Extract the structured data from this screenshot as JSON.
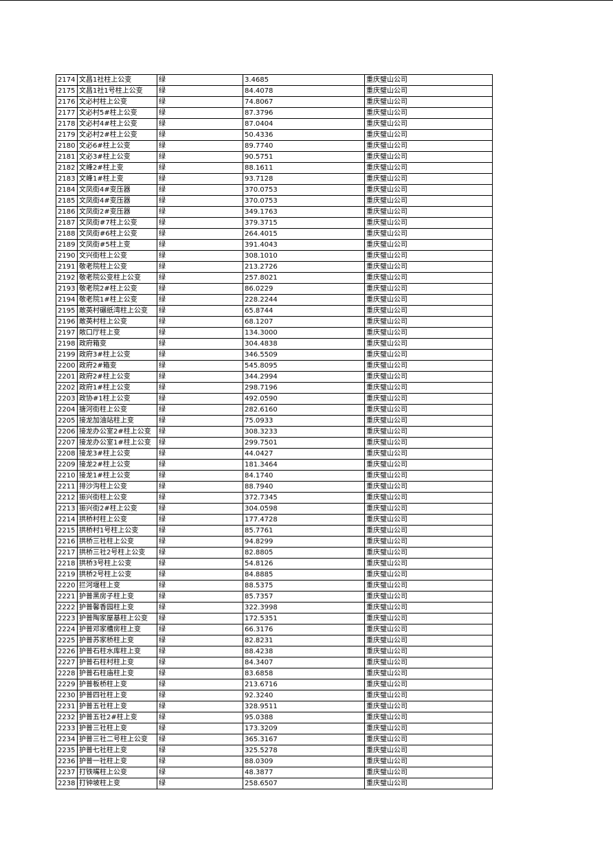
{
  "table": {
    "rows": [
      [
        "2174",
        "文昌1社柱上公变",
        "绿",
        "3.4685",
        "重庆璧山公司"
      ],
      [
        "2175",
        "文昌1社1号柱上公变",
        "绿",
        "84.4078",
        "重庆璧山公司"
      ],
      [
        "2176",
        "文必村柱上公变",
        "绿",
        "74.8067",
        "重庆璧山公司"
      ],
      [
        "2177",
        "文必村5#柱上公变",
        "绿",
        "87.3796",
        "重庆璧山公司"
      ],
      [
        "2178",
        "文必村4#柱上公变",
        "绿",
        "87.0404",
        "重庆璧山公司"
      ],
      [
        "2179",
        "文必村2#柱上公变",
        "绿",
        "50.4336",
        "重庆璧山公司"
      ],
      [
        "2180",
        "文必6#柱上公变",
        "绿",
        "89.7740",
        "重庆璧山公司"
      ],
      [
        "2181",
        "文必3#柱上公变",
        "绿",
        "90.5751",
        "重庆璧山公司"
      ],
      [
        "2182",
        "文峰2#柱上变",
        "绿",
        "88.1611",
        "重庆璧山公司"
      ],
      [
        "2183",
        "文峰1#柱上变",
        "绿",
        "93.7128",
        "重庆璧山公司"
      ],
      [
        "2184",
        "文凤街4#变压器",
        "绿",
        "370.0753",
        "重庆璧山公司"
      ],
      [
        "2185",
        "文凤街4#变压器",
        "绿",
        "370.0753",
        "重庆璧山公司"
      ],
      [
        "2186",
        "文凤街2#变压器",
        "绿",
        "349.1763",
        "重庆璧山公司"
      ],
      [
        "2187",
        "文凤街#7柱上公变",
        "绿",
        "379.3715",
        "重庆璧山公司"
      ],
      [
        "2188",
        "文凤街#6柱上公变",
        "绿",
        "264.4015",
        "重庆璧山公司"
      ],
      [
        "2189",
        "文凤街#5柱上变",
        "绿",
        "391.4043",
        "重庆璧山公司"
      ],
      [
        "2190",
        "文兴街柱上公变",
        "绿",
        "308.1010",
        "重庆璧山公司"
      ],
      [
        "2191",
        "敬老院柱上公变",
        "绿",
        "213.2726",
        "重庆璧山公司"
      ],
      [
        "2192",
        "敬老院公变柱上公变",
        "绿",
        "257.8021",
        "重庆璧山公司"
      ],
      [
        "2193",
        "敬老院2#柱上公变",
        "绿",
        "86.0229",
        "重庆璧山公司"
      ],
      [
        "2194",
        "敬老院1#柱上公变",
        "绿",
        "228.2244",
        "重庆璧山公司"
      ],
      [
        "2195",
        "敢英村碾纸湾柱上公变",
        "绿",
        "65.8744",
        "重庆璧山公司"
      ],
      [
        "2196",
        "敢英村柱上公变",
        "绿",
        "68.1207",
        "重庆璧山公司"
      ],
      [
        "2197",
        "敞口厅柱上变",
        "绿",
        "134.3000",
        "重庆璧山公司"
      ],
      [
        "2198",
        "政府箱变",
        "绿",
        "304.4838",
        "重庆璧山公司"
      ],
      [
        "2199",
        "政府3#柱上公变",
        "绿",
        "346.5509",
        "重庆璧山公司"
      ],
      [
        "2200",
        "政府2#箱变",
        "绿",
        "545.8095",
        "重庆璧山公司"
      ],
      [
        "2201",
        "政府2#柱上公变",
        "绿",
        "344.2994",
        "重庆璧山公司"
      ],
      [
        "2202",
        "政府1#柱上公变",
        "绿",
        "298.7196",
        "重庆璧山公司"
      ],
      [
        "2203",
        "政协#1柱上公变",
        "绿",
        "492.0590",
        "重庆璧山公司"
      ],
      [
        "2204",
        "搪河街柱上公变",
        "绿",
        "282.6160",
        "重庆璧山公司"
      ],
      [
        "2205",
        "接龙加油站柱上变",
        "绿",
        "75.0933",
        "重庆璧山公司"
      ],
      [
        "2206",
        "接龙办公室2#柱上公变",
        "绿",
        "308.3233",
        "重庆璧山公司"
      ],
      [
        "2207",
        "接龙办公室1#柱上公变",
        "绿",
        "299.7501",
        "重庆璧山公司"
      ],
      [
        "2208",
        "接龙3#柱上公变",
        "绿",
        "44.0427",
        "重庆璧山公司"
      ],
      [
        "2209",
        "接龙2#柱上公变",
        "绿",
        "181.3464",
        "重庆璧山公司"
      ],
      [
        "2210",
        "接龙1#柱上公变",
        "绿",
        "84.1740",
        "重庆璧山公司"
      ],
      [
        "2211",
        "排沙沟柱上公变",
        "绿",
        "88.7940",
        "重庆璧山公司"
      ],
      [
        "2212",
        "振兴街柱上公变",
        "绿",
        "372.7345",
        "重庆璧山公司"
      ],
      [
        "2213",
        "振兴街2#柱上公变",
        "绿",
        "304.0598",
        "重庆璧山公司"
      ],
      [
        "2214",
        "拱桥村柱上公变",
        "绿",
        "177.4728",
        "重庆璧山公司"
      ],
      [
        "2215",
        "拱桥村1号柱上公变",
        "绿",
        "85.7761",
        "重庆璧山公司"
      ],
      [
        "2216",
        "拱桥三社柱上公变",
        "绿",
        "94.8299",
        "重庆璧山公司"
      ],
      [
        "2217",
        "拱桥三社2号柱上公变",
        "绿",
        "82.8805",
        "重庆璧山公司"
      ],
      [
        "2218",
        "拱桥3号柱上公变",
        "绿",
        "54.8126",
        "重庆璧山公司"
      ],
      [
        "2219",
        "拱桥2号柱上公变",
        "绿",
        "84.8885",
        "重庆璧山公司"
      ],
      [
        "2220",
        "拦河堰柱上变",
        "绿",
        "88.5375",
        "重庆璧山公司"
      ],
      [
        "2221",
        "护普黑房子柱上变",
        "绿",
        "85.7357",
        "重庆璧山公司"
      ],
      [
        "2222",
        "护普馨香园柱上变",
        "绿",
        "322.3998",
        "重庆璧山公司"
      ],
      [
        "2223",
        "护普陶家屋基柱上公变",
        "绿",
        "172.5351",
        "重庆璧山公司"
      ],
      [
        "2224",
        "护普邓家槽房柱上变",
        "绿",
        "66.3176",
        "重庆璧山公司"
      ],
      [
        "2225",
        "护普苏家桥柱上变",
        "绿",
        "82.8231",
        "重庆璧山公司"
      ],
      [
        "2226",
        "护普石柱水库柱上变",
        "绿",
        "88.4238",
        "重庆璧山公司"
      ],
      [
        "2227",
        "护普石柱村柱上变",
        "绿",
        "84.3407",
        "重庆璧山公司"
      ],
      [
        "2228",
        "护普石柱庙柱上变",
        "绿",
        "83.6858",
        "重庆璧山公司"
      ],
      [
        "2229",
        "护普板桥柱上变",
        "绿",
        "213.6716",
        "重庆璧山公司"
      ],
      [
        "2230",
        "护普四社柱上变",
        "绿",
        "92.3240",
        "重庆璧山公司"
      ],
      [
        "2231",
        "护普五社柱上变",
        "绿",
        "328.9511",
        "重庆璧山公司"
      ],
      [
        "2232",
        "护普五社2#柱上变",
        "绿",
        "95.0388",
        "重庆璧山公司"
      ],
      [
        "2233",
        "护普三社柱上变",
        "绿",
        "173.3209",
        "重庆璧山公司"
      ],
      [
        "2234",
        "护普三社二号柱上公变",
        "绿",
        "365.3167",
        "重庆璧山公司"
      ],
      [
        "2235",
        "护普七社柱上变",
        "绿",
        "325.5278",
        "重庆璧山公司"
      ],
      [
        "2236",
        "护普一社柱上变",
        "绿",
        "88.0309",
        "重庆璧山公司"
      ],
      [
        "2237",
        "打铁嘴柱上公变",
        "绿",
        "48.3877",
        "重庆璧山公司"
      ],
      [
        "2238",
        "打钟坡柱上变",
        "绿",
        "258.6507",
        "重庆璧山公司"
      ]
    ]
  }
}
